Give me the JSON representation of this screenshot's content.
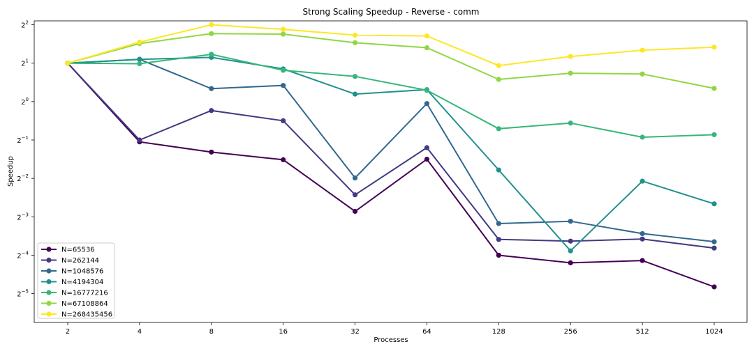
{
  "chart_data": {
    "type": "line",
    "title": "Strong Scaling Speedup - Reverse - comm",
    "xlabel": "Processes",
    "ylabel": "Speedup",
    "x_scale": "log2",
    "y_scale": "log2",
    "categories": [
      "2",
      "4",
      "8",
      "16",
      "32",
      "64",
      "128",
      "256",
      "512",
      "1024"
    ],
    "y_ticks": [
      -5,
      -4,
      -3,
      -2,
      -1,
      0,
      1,
      2
    ],
    "ylim_log2": [
      -5.75,
      2.1
    ],
    "legend_position": "lower-left",
    "grid": false,
    "series": [
      {
        "name": "N=65536",
        "color": "#440154",
        "values": [
          2.0,
          0.483,
          0.402,
          0.35,
          0.1379,
          0.3536,
          0.0625,
          0.0545,
          0.0568,
          0.0353
        ]
      },
      {
        "name": "N=262144",
        "color": "#443983",
        "values": [
          2.0,
          0.5,
          0.8502,
          0.7072,
          0.1859,
          0.4353,
          0.0831,
          0.0806,
          0.0837,
          0.0711
        ]
      },
      {
        "name": "N=1048576",
        "color": "#31688e",
        "values": [
          2.0,
          2.1435,
          1.2628,
          1.3379,
          0.252,
          0.9647,
          0.1107,
          0.1154,
          0.0923,
          0.0797
        ]
      },
      {
        "name": "N=4194304",
        "color": "#21918c",
        "values": [
          2.0,
          2.1435,
          2.2201,
          1.8025,
          1.1441,
          1.2397,
          0.2911,
          0.0676,
          0.2378,
          0.158
        ]
      },
      {
        "name": "N=16777216",
        "color": "#35b779",
        "values": [
          2.0,
          1.9793,
          2.3467,
          1.7586,
          1.5746,
          1.2256,
          0.6125,
          0.6781,
          0.5258,
          0.5504
        ]
      },
      {
        "name": "N=67108864",
        "color": "#90d743",
        "values": [
          2.0,
          2.8497,
          3.4062,
          3.3752,
          2.8905,
          2.6414,
          1.4915,
          1.6683,
          1.6454,
          1.2685
        ]
      },
      {
        "name": "N=268435456",
        "color": "#fde725",
        "values": [
          2.0,
          2.9237,
          4.0,
          3.6802,
          3.3143,
          3.2693,
          1.9143,
          2.2571,
          2.5267,
          2.6682
        ]
      }
    ]
  }
}
